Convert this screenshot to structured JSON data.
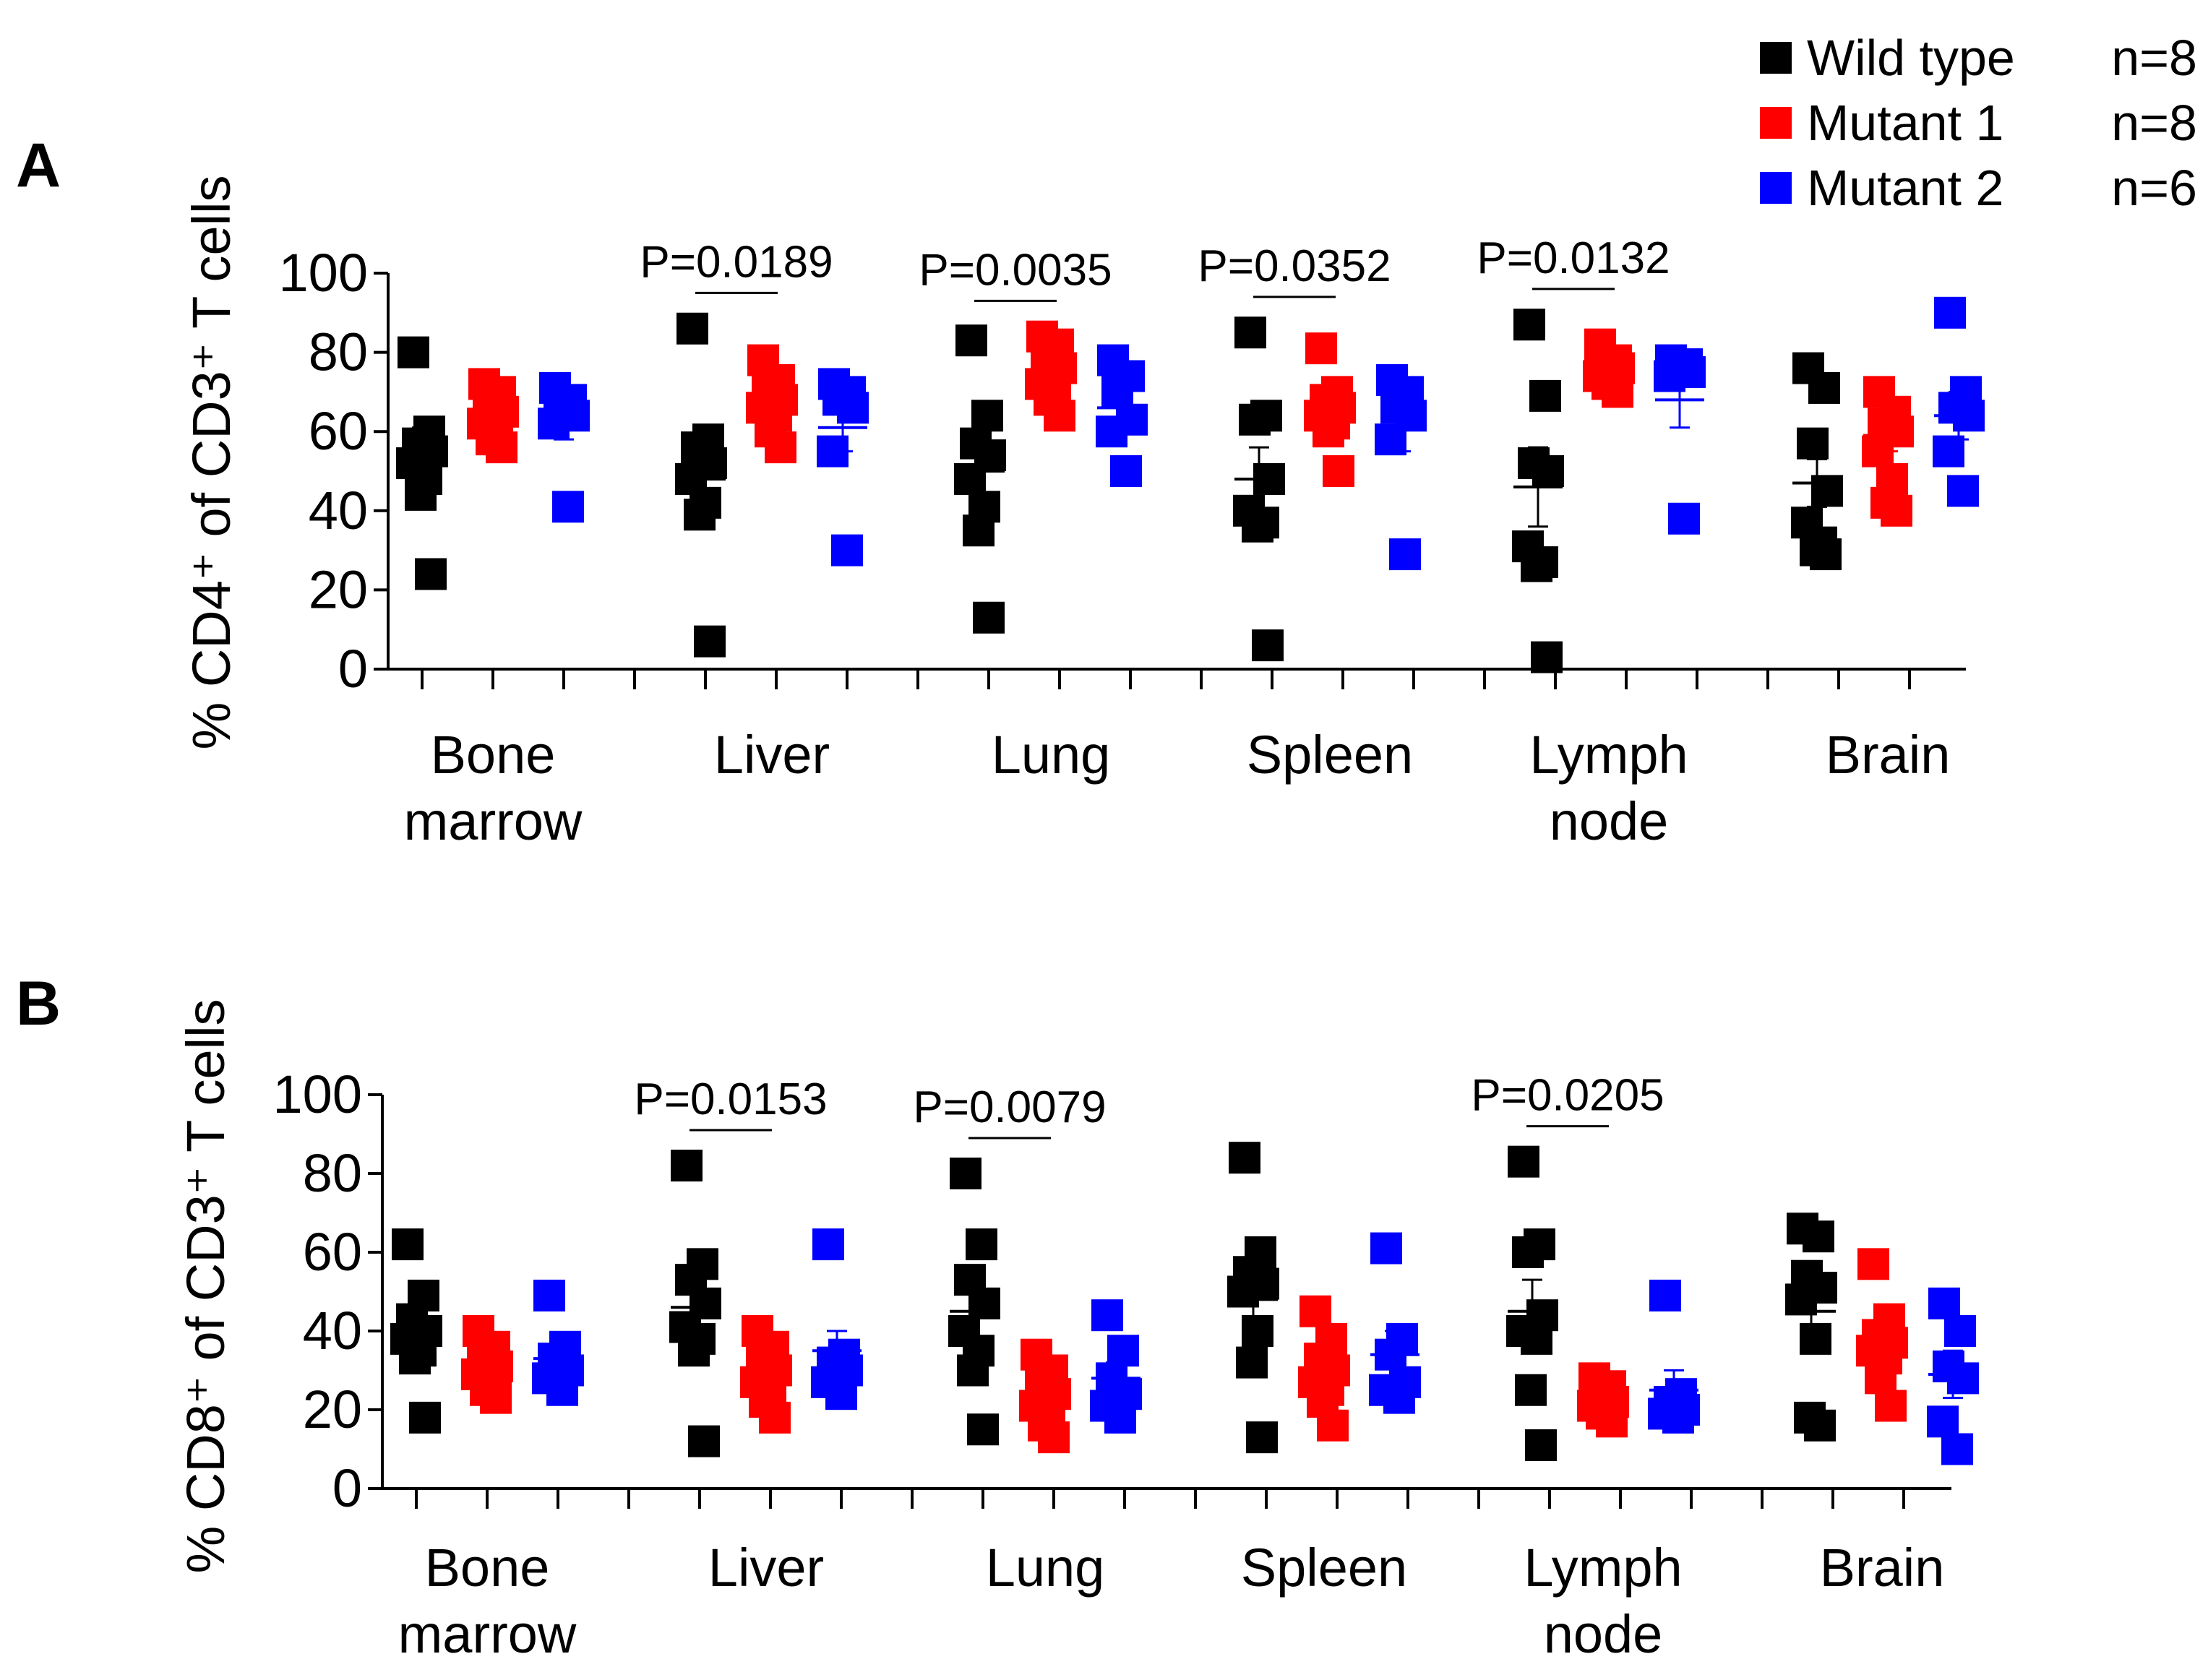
{
  "legend": {
    "items": [
      {
        "label": "Wild type",
        "n": "n=8",
        "color": "#000000"
      },
      {
        "label": "Mutant 1",
        "n": "n=8",
        "color": "#ff0000"
      },
      {
        "label": "Mutant 2",
        "n": "n=6",
        "color": "#0000ff"
      }
    ]
  },
  "colors": {
    "wild_type": "#000000",
    "mutant1": "#ff0000",
    "mutant2": "#0000ff",
    "axis": "#000000"
  },
  "chart_data": [
    {
      "panel": "A",
      "type": "scatter",
      "ylabel": "% CD4⁺ of CD3⁺ T cells",
      "ylim": [
        0,
        100
      ],
      "yticks": [
        0,
        20,
        40,
        60,
        80,
        100
      ],
      "ytick_labels": [
        "0",
        "20",
        "40",
        "60",
        "80",
        "100"
      ],
      "groups": [
        {
          "label_lines": [
            "Bone",
            "marrow"
          ],
          "series": [
            {
              "name": "Wild type",
              "values": [
                80,
                60,
                57,
                55,
                52,
                48,
                44,
                24
              ],
              "mean": 55,
              "sem": 6
            },
            {
              "name": "Mutant 1",
              "values": [
                72,
                70,
                68,
                65,
                62,
                60,
                58,
                56
              ],
              "mean": 64,
              "sem": 2
            },
            {
              "name": "Mutant 2",
              "values": [
                71,
                68,
                66,
                64,
                62,
                41
              ],
              "mean": 62,
              "sem": 4
            }
          ]
        },
        {
          "label_lines": [
            "Liver"
          ],
          "pvalue": "P=0.0189",
          "series": [
            {
              "name": "Wild type",
              "values": [
                86,
                58,
                56,
                52,
                48,
                42,
                39,
                7
              ],
              "mean": 48,
              "sem": 8
            },
            {
              "name": "Mutant 1",
              "values": [
                78,
                73,
                70,
                68,
                66,
                64,
                60,
                56
              ],
              "mean": 67,
              "sem": 2
            },
            {
              "name": "Mutant 2",
              "values": [
                72,
                70,
                68,
                66,
                55,
                30
              ],
              "mean": 61,
              "sem": 6
            }
          ]
        },
        {
          "label_lines": [
            "Lung"
          ],
          "pvalue": "P=0.0035",
          "series": [
            {
              "name": "Wild type",
              "values": [
                83,
                64,
                57,
                54,
                48,
                41,
                35,
                13
              ],
              "mean": 50,
              "sem": 7
            },
            {
              "name": "Mutant 1",
              "values": [
                84,
                82,
                78,
                76,
                72,
                70,
                68,
                64
              ],
              "mean": 74,
              "sem": 2
            },
            {
              "name": "Mutant 2",
              "values": [
                78,
                74,
                70,
                63,
                60,
                50
              ],
              "mean": 66,
              "sem": 4
            }
          ]
        },
        {
          "label_lines": [
            "Spleen"
          ],
          "pvalue": "P=0.0352",
          "series": [
            {
              "name": "Wild type",
              "values": [
                85,
                64,
                63,
                48,
                40,
                37,
                36,
                6
              ],
              "mean": 48,
              "sem": 8
            },
            {
              "name": "Mutant 1",
              "values": [
                81,
                70,
                68,
                66,
                64,
                62,
                60,
                50
              ],
              "mean": 65,
              "sem": 3
            },
            {
              "name": "Mutant 2",
              "values": [
                73,
                70,
                66,
                64,
                58,
                29
              ],
              "mean": 61,
              "sem": 6
            }
          ]
        },
        {
          "label_lines": [
            "Lymph",
            "node"
          ],
          "pvalue": "P=0.0132",
          "series": [
            {
              "name": "Wild type",
              "values": [
                87,
                69,
                52,
                50,
                31,
                27,
                26,
                3
              ],
              "mean": 46,
              "sem": 10
            },
            {
              "name": "Mutant 1",
              "values": [
                82,
                78,
                77,
                76,
                74,
                73,
                72,
                70
              ],
              "mean": 76,
              "sem": 1
            },
            {
              "name": "Mutant 2",
              "values": [
                78,
                77,
                76,
                75,
                74,
                38
              ],
              "mean": 68,
              "sem": 7
            }
          ]
        },
        {
          "label_lines": [
            "Brain"
          ],
          "series": [
            {
              "name": "Wild type",
              "values": [
                76,
                71,
                57,
                45,
                37,
                32,
                30,
                29
              ],
              "mean": 47,
              "sem": 6
            },
            {
              "name": "Mutant 1",
              "values": [
                70,
                65,
                62,
                60,
                55,
                48,
                42,
                40
              ],
              "mean": 59,
              "sem": 4
            },
            {
              "name": "Mutant 2",
              "values": [
                90,
                70,
                66,
                64,
                55,
                45
              ],
              "mean": 64,
              "sem": 6
            }
          ]
        }
      ]
    },
    {
      "panel": "B",
      "type": "scatter",
      "ylabel": "% CD8⁺ of CD3⁺ T cells",
      "ylim": [
        0,
        100
      ],
      "yticks": [
        0,
        20,
        40,
        60,
        80,
        100
      ],
      "ytick_labels": [
        "0",
        "20",
        "40",
        "60",
        "80",
        "100"
      ],
      "groups": [
        {
          "label_lines": [
            "Bone",
            "marrow"
          ],
          "series": [
            {
              "name": "Wild type",
              "values": [
                62,
                49,
                43,
                40,
                38,
                35,
                33,
                18
              ],
              "mean": 40,
              "sem": 4
            },
            {
              "name": "Mutant 1",
              "values": [
                40,
                36,
                33,
                31,
                29,
                27,
                25,
                23
              ],
              "mean": 30,
              "sem": 2
            },
            {
              "name": "Mutant 2",
              "values": [
                49,
                36,
                33,
                30,
                28,
                25
              ],
              "mean": 33,
              "sem": 3
            }
          ]
        },
        {
          "label_lines": [
            "Liver"
          ],
          "pvalue": "P=0.0153",
          "series": [
            {
              "name": "Wild type",
              "values": [
                82,
                57,
                53,
                47,
                41,
                38,
                35,
                12
              ],
              "mean": 46,
              "sem": 7
            },
            {
              "name": "Mutant 1",
              "values": [
                40,
                36,
                32,
                30,
                27,
                25,
                22,
                18
              ],
              "mean": 29,
              "sem": 3
            },
            {
              "name": "Mutant 2",
              "values": [
                62,
                34,
                32,
                30,
                27,
                24
              ],
              "mean": 35,
              "sem": 5
            }
          ]
        },
        {
          "label_lines": [
            "Lung"
          ],
          "pvalue": "P=0.0079",
          "series": [
            {
              "name": "Wild type",
              "values": [
                80,
                62,
                53,
                47,
                40,
                35,
                30,
                15
              ],
              "mean": 45,
              "sem": 8
            },
            {
              "name": "Mutant 1",
              "values": [
                34,
                30,
                27,
                24,
                21,
                19,
                16,
                13
              ],
              "mean": 23,
              "sem": 3
            },
            {
              "name": "Mutant 2",
              "values": [
                44,
                35,
                28,
                24,
                21,
                18
              ],
              "mean": 28,
              "sem": 4
            }
          ]
        },
        {
          "label_lines": [
            "Spleen"
          ],
          "series": [
            {
              "name": "Wild type",
              "values": [
                84,
                60,
                55,
                52,
                50,
                40,
                32,
                13
              ],
              "mean": 48,
              "sem": 8
            },
            {
              "name": "Mutant 1",
              "values": [
                45,
                38,
                33,
                30,
                27,
                25,
                22,
                16
              ],
              "mean": 30,
              "sem": 3
            },
            {
              "name": "Mutant 2",
              "values": [
                61,
                38,
                34,
                27,
                25,
                23
              ],
              "mean": 34,
              "sem": 6
            }
          ]
        },
        {
          "label_lines": [
            "Lymph",
            "node"
          ],
          "pvalue": "P=0.0205",
          "series": [
            {
              "name": "Wild type",
              "values": [
                83,
                62,
                60,
                44,
                40,
                38,
                25,
                11
              ],
              "mean": 45,
              "sem": 8
            },
            {
              "name": "Mutant 1",
              "values": [
                28,
                26,
                24,
                22,
                21,
                20,
                19,
                17
              ],
              "mean": 22,
              "sem": 1
            },
            {
              "name": "Mutant 2",
              "values": [
                49,
                24,
                22,
                20,
                19,
                18
              ],
              "mean": 25,
              "sem": 5
            }
          ]
        },
        {
          "label_lines": [
            "Brain"
          ],
          "series": [
            {
              "name": "Wild type",
              "values": [
                66,
                64,
                54,
                51,
                48,
                38,
                18,
                16
              ],
              "mean": 45,
              "sem": 7
            },
            {
              "name": "Mutant 1",
              "values": [
                57,
                43,
                39,
                37,
                35,
                33,
                28,
                21
              ],
              "mean": 37,
              "sem": 4
            },
            {
              "name": "Mutant 2",
              "values": [
                47,
                40,
                31,
                28,
                17,
                10
              ],
              "mean": 29,
              "sem": 6
            }
          ]
        }
      ]
    }
  ]
}
